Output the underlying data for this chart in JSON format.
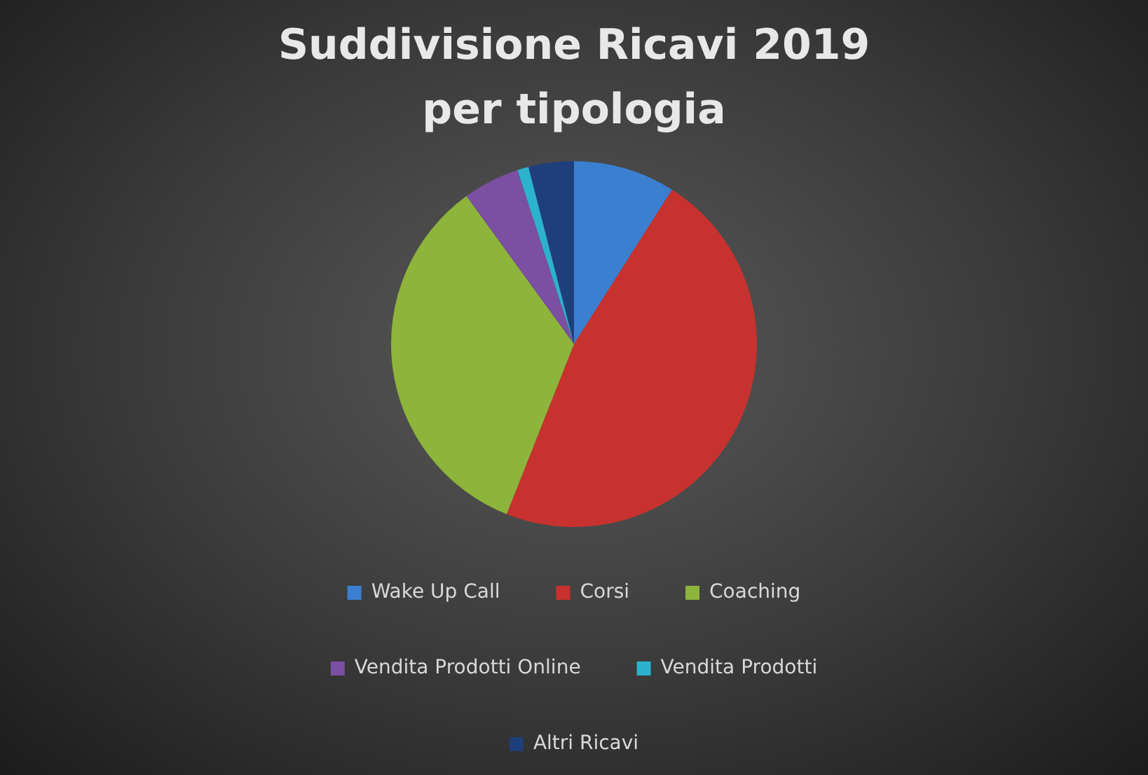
{
  "chart_data": {
    "type": "pie",
    "title": "Suddivisione Ricavi 2019 per tipologia",
    "categories": [
      "Wake Up Call",
      "Corsi",
      "Coaching",
      "Vendita Prodotti Online",
      "Vendita Prodotti",
      "Altri Ricavi"
    ],
    "values": [
      9,
      47,
      34,
      5,
      1,
      4
    ],
    "colors": [
      "#3b7fd0",
      "#c8322e",
      "#8db43b",
      "#7b4fa2",
      "#2cb2cc",
      "#1f3f7c"
    ],
    "legend": "bottom"
  }
}
